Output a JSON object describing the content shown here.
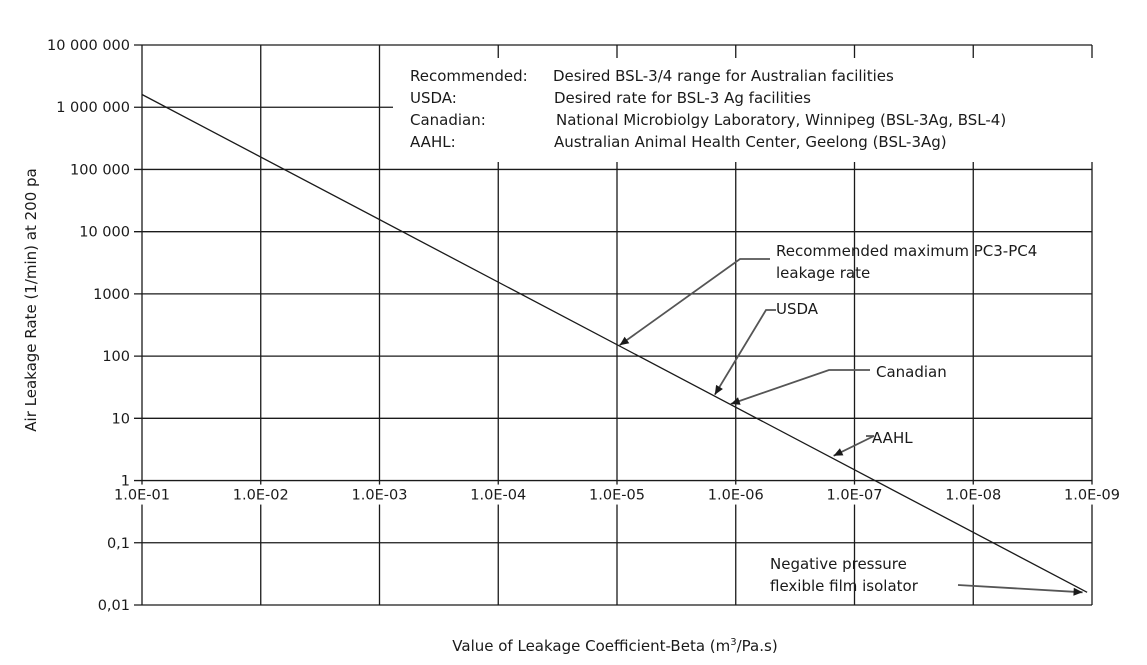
{
  "chart_data": {
    "type": "line",
    "xlabel": "Value of Leakage Coefficient-Beta (m",
    "xlabel_sup": "3",
    "xlabel_suffix": "/Pa.s)",
    "ylabel": "Air Leakage Rate (1/min) at 200 pa",
    "x_scale": "log",
    "y_scale": "log",
    "x_reversed": true,
    "xlim": [
      0.1,
      1e-09
    ],
    "ylim": [
      0.01,
      10000000
    ],
    "grid": true,
    "x_ticks": [
      {
        "value": 0.1,
        "label": "1.0E-01"
      },
      {
        "value": 0.01,
        "label": "1.0E-02"
      },
      {
        "value": 0.001,
        "label": "1.0E-03"
      },
      {
        "value": 0.0001,
        "label": "1.0E-04"
      },
      {
        "value": 1e-05,
        "label": "1.0E-05"
      },
      {
        "value": 1e-06,
        "label": "1.0E-06"
      },
      {
        "value": 1e-07,
        "label": "1.0E-07"
      },
      {
        "value": 1e-08,
        "label": "1.0E-08"
      },
      {
        "value": 1e-09,
        "label": "1.0E-09"
      }
    ],
    "y_ticks": [
      {
        "value": 10000000,
        "label": "10 000 000"
      },
      {
        "value": 1000000,
        "label": "1 000 000"
      },
      {
        "value": 100000,
        "label": "100 000"
      },
      {
        "value": 10000,
        "label": "10 000"
      },
      {
        "value": 1000,
        "label": "1000"
      },
      {
        "value": 100,
        "label": "100"
      },
      {
        "value": 10,
        "label": "10"
      },
      {
        "value": 1,
        "label": "1"
      },
      {
        "value": 0.1,
        "label": "0,1"
      },
      {
        "value": 0.01,
        "label": "0,01"
      }
    ],
    "series": [
      {
        "x": [
          0.1,
          1.1e-09
        ],
        "y": [
          1600000,
          0.016
        ]
      }
    ],
    "legend_block": [
      {
        "key": "Recommended:",
        "desc": "Desired BSL-3/4 range for Australian facilities"
      },
      {
        "key": "USDA:",
        "desc": "Desired rate for BSL-3 Ag facilities"
      },
      {
        "key": "Canadian:",
        "desc": "National Microbiolgy Laboratory, Winnipeg (BSL-3Ag, BSL-4)"
      },
      {
        "key": "AAHL:",
        "desc": "Australian Animal Health Center, Geelong (BSL-3Ag)"
      }
    ],
    "annotations": [
      {
        "lines": [
          "Recommended maximum PC3-PC4",
          "leakage rate"
        ],
        "point": {
          "x": 9.5e-06,
          "y": 150
        }
      },
      {
        "lines": [
          "USDA"
        ],
        "point": {
          "x": 1.5e-06,
          "y": 24
        }
      },
      {
        "lines": [
          "Canadian"
        ],
        "point": {
          "x": 1.1e-06,
          "y": 17
        }
      },
      {
        "lines": [
          "AAHL"
        ],
        "point": {
          "x": 1.5e-07,
          "y": 2.5
        }
      },
      {
        "lines": [
          "Negative pressure",
          "flexible film isolator"
        ],
        "point": {
          "x": 1.2e-09,
          "y": 0.016
        }
      }
    ]
  }
}
